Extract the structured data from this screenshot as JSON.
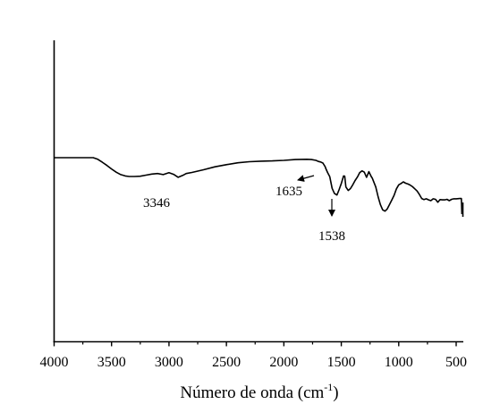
{
  "chart_data": {
    "type": "line",
    "title": "",
    "xlabel_main": "Número de onda (cm",
    "xlabel_sup": "-1",
    "xlabel_close": ")",
    "ylabel": "",
    "xlim": [
      4000,
      450
    ],
    "x_reversed": true,
    "xticks": [
      "4000",
      "3500",
      "3000",
      "2500",
      "2000",
      "1500",
      "1000",
      "500"
    ],
    "xtick_values": [
      4000,
      3500,
      3000,
      2500,
      2000,
      1500,
      1000,
      500
    ],
    "y_axis_ticks": false,
    "grid": false,
    "series": [
      {
        "color": "#000000",
        "x": [
          4000,
          3800,
          3660,
          3620,
          3580,
          3540,
          3500,
          3460,
          3420,
          3380,
          3346,
          3300,
          3250,
          3200,
          3150,
          3100,
          3050,
          3000,
          2960,
          2920,
          2880,
          2850,
          2800,
          2700,
          2600,
          2500,
          2400,
          2300,
          2200,
          2100,
          2000,
          1900,
          1800,
          1760,
          1720,
          1700,
          1680,
          1660,
          1640,
          1635,
          1620,
          1600,
          1580,
          1560,
          1538,
          1520,
          1500,
          1480,
          1470,
          1460,
          1440,
          1420,
          1400,
          1380,
          1360,
          1340,
          1320,
          1300,
          1280,
          1260,
          1240,
          1230,
          1200,
          1180,
          1160,
          1140,
          1120,
          1100,
          1080,
          1060,
          1040,
          1020,
          1000,
          980,
          960,
          940,
          920,
          900,
          880,
          860,
          840,
          820,
          800,
          780,
          760,
          740,
          720,
          700,
          680,
          660,
          640,
          620,
          600,
          580,
          560,
          540,
          520,
          500,
          470,
          455,
          450
        ],
        "y": [
          100,
          100,
          100,
          99.4,
          98.3,
          97.1,
          95.8,
          94.6,
          93.7,
          93.2,
          93.0,
          93.0,
          93.1,
          93.5,
          93.9,
          94.1,
          93.7,
          94.4,
          93.8,
          92.7,
          93.4,
          94.1,
          94.5,
          95.5,
          96.6,
          97.4,
          98.1,
          98.5,
          98.7,
          98.8,
          99.0,
          99.3,
          99.4,
          99.3,
          99.0,
          98.6,
          98.4,
          98.0,
          96.6,
          96.0,
          94.5,
          92.9,
          88.6,
          86.7,
          86.1,
          88.0,
          90.4,
          93.2,
          93.1,
          89.1,
          87.8,
          88.5,
          89.9,
          91.5,
          92.8,
          94.4,
          95.1,
          94.6,
          92.7,
          94.8,
          93.0,
          92.4,
          89.1,
          85.5,
          82.6,
          80.6,
          80.1,
          80.9,
          82.6,
          84.3,
          86.0,
          88.4,
          89.9,
          90.4,
          91.0,
          90.5,
          90.2,
          89.8,
          89.2,
          88.4,
          87.6,
          86.3,
          84.8,
          84.4,
          84.7,
          84.3,
          84.0,
          84.7,
          84.5,
          83.4,
          84.4,
          84.3,
          84.3,
          84.5,
          84.0,
          84.5,
          84.7,
          84.7,
          84.8,
          84.8,
          79.0
        ]
      }
    ],
    "annotations": [
      {
        "text": "3346",
        "x": 3346
      },
      {
        "text": "1635",
        "x": 1635
      },
      {
        "text": "1538",
        "x": 1538
      }
    ]
  }
}
